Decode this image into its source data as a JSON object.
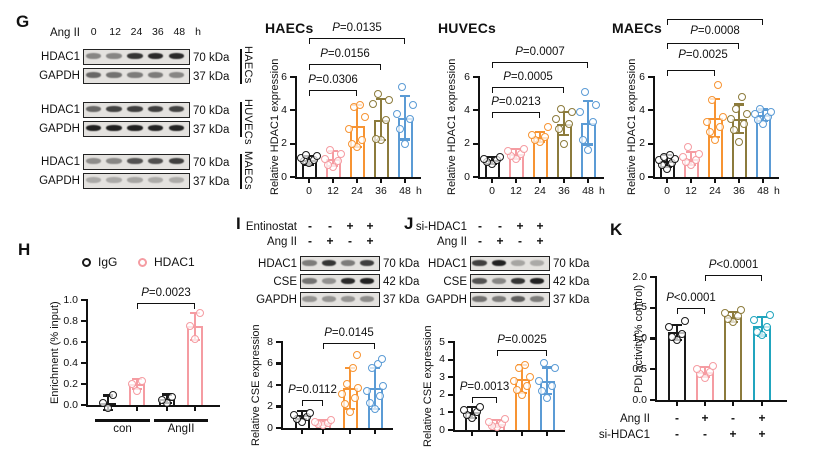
{
  "figure": {
    "panels": {
      "G": {
        "label": "G"
      },
      "H": {
        "label": "H"
      },
      "I": {
        "label": "I"
      },
      "J": {
        "label": "J"
      },
      "K": {
        "label": "K"
      }
    }
  },
  "colors": {
    "black": "#1a1a1a",
    "pink": "#F59CA2",
    "orange": "#F79433",
    "olive": "#8C7B3C",
    "blue": "#5B9BD5",
    "teal": "#21A5BE"
  },
  "blots": {
    "G": {
      "treatment_label": "Ang II",
      "lane_labels": [
        "0",
        "12",
        "24",
        "36",
        "48"
      ],
      "unit_label": "h",
      "groups": [
        {
          "cell_line": "HAECs",
          "rows": [
            {
              "protein": "HDAC1",
              "mw": "70 kDa",
              "bands": [
                0.45,
                0.45,
                0.85,
                0.9,
                0.9
              ]
            },
            {
              "protein": "GAPDH",
              "mw": "37 kDa",
              "bands": [
                0.6,
                0.55,
                0.5,
                0.5,
                0.45
              ]
            }
          ]
        },
        {
          "cell_line": "HUVECs",
          "rows": [
            {
              "protein": "HDAC1",
              "mw": "70 kDa",
              "bands": [
                0.6,
                0.78,
                0.8,
                0.8,
                0.78
              ]
            },
            {
              "protein": "GAPDH",
              "mw": "37 kDa",
              "bands": [
                0.95,
                0.95,
                0.95,
                0.93,
                0.93
              ]
            }
          ]
        },
        {
          "cell_line": "MAECs",
          "rows": [
            {
              "protein": "HDAC1",
              "mw": "70 kDa",
              "bands": [
                0.42,
                0.45,
                0.7,
                0.72,
                0.8
              ]
            },
            {
              "protein": "GAPDH",
              "mw": "37 kDa",
              "bands": [
                0.28,
                0.28,
                0.3,
                0.27,
                0.27
              ]
            }
          ]
        }
      ]
    },
    "I": {
      "condition_rows": [
        {
          "label": "Entinostat",
          "values": [
            "-",
            "-",
            "+",
            "+"
          ]
        },
        {
          "label": "Ang II",
          "values": [
            "-",
            "+",
            "-",
            "+"
          ]
        }
      ],
      "rows": [
        {
          "protein": "HDAC1",
          "mw": "70 kDa",
          "bands": [
            0.5,
            0.85,
            0.5,
            0.8
          ]
        },
        {
          "protein": "CSE",
          "mw": "42 kDa",
          "bands": [
            0.55,
            0.4,
            0.9,
            0.95
          ]
        },
        {
          "protein": "GAPDH",
          "mw": "37 kDa",
          "bands": [
            0.38,
            0.38,
            0.38,
            0.42
          ]
        }
      ]
    },
    "J": {
      "condition_rows": [
        {
          "label": "si-HDAC1",
          "values": [
            "-",
            "-",
            "+",
            "+"
          ]
        },
        {
          "label": "Ang II",
          "values": [
            "-",
            "+",
            "-",
            "+"
          ]
        }
      ],
      "rows": [
        {
          "protein": "HDAC1",
          "mw": "70 kDa",
          "bands": [
            0.8,
            0.95,
            0.3,
            0.28
          ]
        },
        {
          "protein": "CSE",
          "mw": "42 kDa",
          "bands": [
            0.7,
            0.45,
            0.85,
            0.95
          ]
        },
        {
          "protein": "GAPDH",
          "mw": "37 kDa",
          "bands": [
            0.55,
            0.5,
            0.65,
            0.5
          ]
        }
      ]
    }
  },
  "chart_data": [
    {
      "id": "haecs",
      "type": "bar",
      "title": "HAECs",
      "ylabel": "Relative HDAC1 expression",
      "categories": [
        "0",
        "12",
        "24",
        "36",
        "48"
      ],
      "x_unit": "h",
      "ylim": [
        0,
        6
      ],
      "yticks": [
        "0",
        "2",
        "4",
        "6"
      ],
      "values": [
        1.0,
        1.1,
        3.05,
        3.45,
        3.55
      ],
      "errors": [
        0.25,
        0.45,
        1.25,
        1.25,
        1.3
      ],
      "bar_colors": [
        "black",
        "pink",
        "orange",
        "olive",
        "blue"
      ],
      "points": [
        [
          0.85,
          0.95,
          1.05,
          1.15,
          1.25,
          1.3
        ],
        [
          0.6,
          0.75,
          0.95,
          1.1,
          1.4,
          1.6
        ],
        [
          1.8,
          2.0,
          2.2,
          2.9,
          3.6,
          4.2,
          4.3
        ],
        [
          2.2,
          2.3,
          3.4,
          4.4,
          4.6,
          5.0
        ],
        [
          2.0,
          2.9,
          3.5,
          3.8,
          4.3,
          5.4
        ]
      ],
      "brackets": [
        {
          "from": 0,
          "to": 2,
          "label": "P=0.0306",
          "label_side": "above"
        },
        {
          "from": 0,
          "to": 3,
          "label": "P=0.0156",
          "label_side": "above"
        },
        {
          "from": 0,
          "to": 4,
          "label": "P=0.0135",
          "label_side": "above"
        }
      ]
    },
    {
      "id": "huvecs",
      "type": "bar",
      "title": "HUVECs",
      "ylabel": "Relative HDAC1 expression",
      "categories": [
        "0",
        "12",
        "24",
        "36",
        "48"
      ],
      "x_unit": "h",
      "ylim": [
        0,
        6
      ],
      "yticks": [
        "0",
        "2",
        "4",
        "6"
      ],
      "values": [
        1.0,
        1.4,
        2.4,
        3.2,
        3.25
      ],
      "errors": [
        0.2,
        0.3,
        0.3,
        0.7,
        1.3
      ],
      "bar_colors": [
        "black",
        "pink",
        "orange",
        "olive",
        "blue"
      ],
      "points": [
        [
          0.8,
          0.9,
          1.0,
          1.1,
          1.2
        ],
        [
          1.1,
          1.25,
          1.4,
          1.55,
          1.7
        ],
        [
          2.1,
          2.25,
          2.4,
          2.55,
          3.0
        ],
        [
          2.0,
          2.9,
          3.2,
          3.5,
          3.9,
          4.1
        ],
        [
          1.6,
          2.2,
          3.3,
          3.9,
          4.3,
          5.1
        ]
      ],
      "brackets": [
        {
          "from": 0,
          "to": 2,
          "label": "P=0.0213",
          "label_side": "above"
        },
        {
          "from": 0,
          "to": 3,
          "label": "P=0.0005",
          "label_side": "above"
        },
        {
          "from": 0,
          "to": 4,
          "label": "P=0.0007",
          "label_side": "above"
        }
      ]
    },
    {
      "id": "maecs",
      "type": "bar",
      "title": "MAECs",
      "ylabel": "Relative HDAC1 expression",
      "categories": [
        "0",
        "12",
        "24",
        "36",
        "48"
      ],
      "x_unit": "h",
      "ylim": [
        0,
        6
      ],
      "yticks": [
        "0",
        "2",
        "4",
        "6"
      ],
      "values": [
        0.95,
        1.1,
        3.55,
        3.5,
        3.7
      ],
      "errors": [
        0.35,
        0.4,
        1.15,
        0.85,
        0.35
      ],
      "bar_colors": [
        "black",
        "pink",
        "orange",
        "olive",
        "blue"
      ],
      "points": [
        [
          0.5,
          0.7,
          0.85,
          1.0,
          1.1,
          1.2,
          1.35
        ],
        [
          0.7,
          0.9,
          1.05,
          1.2,
          1.4,
          1.8
        ],
        [
          2.2,
          2.7,
          3.0,
          3.3,
          3.6,
          4.6,
          5.5
        ],
        [
          2.1,
          2.8,
          3.2,
          3.5,
          3.8,
          4.1,
          4.8
        ],
        [
          3.2,
          3.4,
          3.6,
          3.8,
          3.9,
          4.1
        ]
      ],
      "brackets": [
        {
          "from": 0,
          "to": 2,
          "label": "",
          "label_side": "below"
        },
        {
          "from": 0,
          "to": 3,
          "label": "P=0.0025",
          "label_side": "below"
        },
        {
          "from": 0,
          "to": 4,
          "label": "P=0.0008",
          "label_side": "below"
        }
      ]
    },
    {
      "id": "h",
      "type": "grouped-bar",
      "ylabel": "Enrichment (% input)",
      "legend": [
        {
          "name": "IgG",
          "color": "black"
        },
        {
          "name": "HDAC1",
          "color": "pink"
        }
      ],
      "group_labels": [
        "con",
        "AngII"
      ],
      "ylim": [
        0,
        1.0
      ],
      "yticks": [
        "0.0",
        "0.2",
        "0.4",
        "0.6",
        "0.8",
        "1.0"
      ],
      "values": [
        0.02,
        0.2,
        0.06,
        0.75
      ],
      "errors": [
        0.07,
        0.05,
        0.04,
        0.13
      ],
      "bar_colors": [
        "black",
        "pink",
        "black",
        "pink"
      ],
      "points": [
        [
          -0.03,
          0.02,
          0.1
        ],
        [
          0.13,
          0.2,
          0.23
        ],
        [
          0.02,
          0.05,
          0.08
        ],
        [
          0.63,
          0.75,
          0.88
        ]
      ],
      "brackets": [
        {
          "from": 1,
          "to": 3,
          "label": "P=0.0023",
          "label_side": "above"
        }
      ]
    },
    {
      "id": "i",
      "type": "bar",
      "ylabel": "Relative CSE expression",
      "ylim": [
        0,
        8
      ],
      "yticks": [
        "0",
        "2",
        "4",
        "6",
        "8"
      ],
      "values": [
        1.2,
        0.5,
        3.7,
        3.7
      ],
      "errors": [
        0.35,
        0.25,
        1.9,
        1.9
      ],
      "bar_colors": [
        "black",
        "pink",
        "orange",
        "blue"
      ],
      "points": [
        [
          0.6,
          0.8,
          1.0,
          1.2,
          1.4
        ],
        [
          0.25,
          0.4,
          0.5,
          0.6,
          0.75
        ],
        [
          1.5,
          2.2,
          2.8,
          3.2,
          3.7,
          4.1,
          5.6,
          6.8
        ],
        [
          1.8,
          2.3,
          3.0,
          3.4,
          3.9,
          5.6,
          6.0,
          6.4
        ]
      ],
      "brackets": [
        {
          "from": 0,
          "to": 1,
          "label": "P=0.0112",
          "label_side": "above"
        },
        {
          "from": 1,
          "to": 3,
          "label": "P=0.0145",
          "label_side": "above"
        }
      ]
    },
    {
      "id": "j",
      "type": "bar",
      "ylabel": "Relative CSE expression",
      "ylim": [
        0,
        5
      ],
      "yticks": [
        "0",
        "1",
        "2",
        "3",
        "4",
        "5"
      ],
      "values": [
        1.0,
        0.35,
        2.9,
        2.8
      ],
      "errors": [
        0.3,
        0.2,
        0.8,
        0.75
      ],
      "bar_colors": [
        "black",
        "pink",
        "orange",
        "blue"
      ],
      "points": [
        [
          0.7,
          0.85,
          1.0,
          1.15,
          1.3
        ],
        [
          0.15,
          0.25,
          0.35,
          0.45,
          0.6
        ],
        [
          2.0,
          2.3,
          2.5,
          2.8,
          3.0,
          3.5,
          3.7
        ],
        [
          1.8,
          2.2,
          2.5,
          2.8,
          3.5,
          3.8
        ]
      ],
      "brackets": [
        {
          "from": 0,
          "to": 1,
          "label": "P=0.0013",
          "label_side": "above"
        },
        {
          "from": 1,
          "to": 3,
          "label": "P=0.0025",
          "label_side": "above"
        }
      ]
    },
    {
      "id": "k",
      "type": "bar",
      "ylabel": "PDI activity(% control)",
      "ylim": [
        0,
        2
      ],
      "yticks": [
        "0.0",
        "0.5",
        "1.0",
        "1.5",
        "2.0"
      ],
      "values": [
        1.1,
        0.45,
        1.35,
        1.2
      ],
      "errors": [
        0.12,
        0.08,
        0.08,
        0.15
      ],
      "bar_colors": [
        "black",
        "pink",
        "olive",
        "teal"
      ],
      "points": [
        [
          0.97,
          1.02,
          1.08,
          1.18,
          1.28
        ],
        [
          0.35,
          0.42,
          0.46,
          0.5,
          0.55
        ],
        [
          1.27,
          1.32,
          1.37,
          1.42,
          1.46
        ],
        [
          1.05,
          1.1,
          1.18,
          1.3,
          1.38
        ]
      ],
      "brackets": [
        {
          "from": 0,
          "to": 1,
          "label": "P<0.0001",
          "label_side": "above"
        },
        {
          "from": 1,
          "to": 3,
          "label": "P<0.0001",
          "label_side": "above"
        }
      ],
      "condition_rows": [
        {
          "label": "Ang II",
          "values": [
            "-",
            "+",
            "-",
            "+"
          ]
        },
        {
          "label": "si-HDAC1",
          "values": [
            "-",
            "-",
            "+",
            "+"
          ]
        }
      ]
    }
  ]
}
